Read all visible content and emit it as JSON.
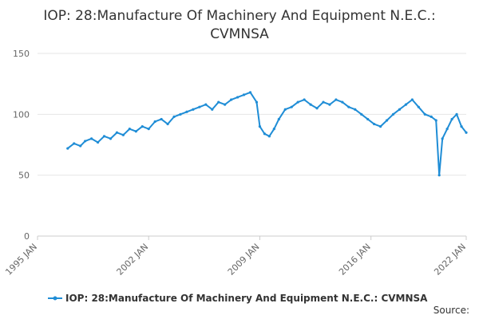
{
  "chart_data": {
    "type": "line",
    "title": "IOP: 28:Manufacture Of Machinery And Equipment N.E.C.: CVMNSA",
    "title_lines": [
      "IOP: 28:Manufacture Of Machinery And Equipment N.E.C.:",
      "CVMNSA"
    ],
    "xlabel": "",
    "ylabel": "",
    "x_ticks": [
      "1995 JAN",
      "2002 JAN",
      "2009 JAN",
      "2016 JAN",
      "2022 JAN"
    ],
    "x_tick_years": [
      1995,
      2002,
      2009,
      2016,
      2022
    ],
    "xlim": [
      1995,
      2022
    ],
    "y_ticks": [
      0,
      50,
      100,
      150
    ],
    "ylim": [
      0,
      150
    ],
    "grid": true,
    "legend_position": "bottom",
    "series": [
      {
        "name": "IOP: 28:Manufacture Of Machinery And Equipment N.E.C.: CVMNSA",
        "color": "#1f8dd6",
        "x": [
          1996.9,
          1997.3,
          1997.7,
          1998.0,
          1998.4,
          1998.8,
          1999.2,
          1999.6,
          2000.0,
          2000.4,
          2000.8,
          2001.2,
          2001.6,
          2002.0,
          2002.4,
          2002.8,
          2003.2,
          2003.6,
          2004.0,
          2004.4,
          2004.8,
          2005.2,
          2005.6,
          2006.0,
          2006.4,
          2006.8,
          2007.2,
          2007.6,
          2008.0,
          2008.4,
          2008.8,
          2009.0,
          2009.3,
          2009.6,
          2009.9,
          2010.2,
          2010.6,
          2011.0,
          2011.4,
          2011.8,
          2012.2,
          2012.6,
          2013.0,
          2013.4,
          2013.8,
          2014.2,
          2014.6,
          2015.0,
          2015.4,
          2015.8,
          2016.2,
          2016.6,
          2017.0,
          2017.4,
          2017.8,
          2018.2,
          2018.6,
          2019.0,
          2019.4,
          2019.8,
          2020.1,
          2020.3,
          2020.5,
          2020.8,
          2021.1,
          2021.4,
          2021.7,
          2022.0
        ],
        "values": [
          72,
          76,
          74,
          78,
          80,
          77,
          82,
          80,
          85,
          83,
          88,
          86,
          90,
          88,
          94,
          96,
          92,
          98,
          100,
          102,
          104,
          106,
          108,
          104,
          110,
          108,
          112,
          114,
          116,
          118,
          110,
          90,
          84,
          82,
          88,
          96,
          104,
          106,
          110,
          112,
          108,
          105,
          110,
          108,
          112,
          110,
          106,
          104,
          100,
          96,
          92,
          90,
          95,
          100,
          104,
          108,
          112,
          106,
          100,
          98,
          95,
          50,
          80,
          88,
          96,
          100,
          90,
          85
        ]
      }
    ]
  },
  "source_label": "Source:"
}
